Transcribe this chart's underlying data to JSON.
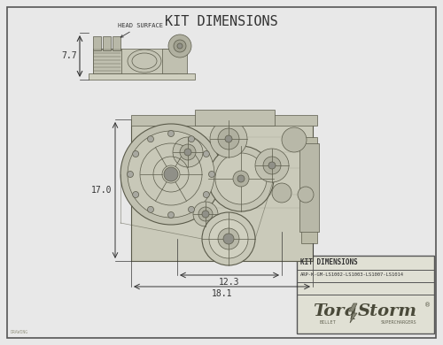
{
  "title": "KIT DIMENSIONS",
  "bg_color": "#e8e8e8",
  "border_color": "#555555",
  "drawing_color": "#5a5a4a",
  "dim_color": "#333333",
  "title_fontsize": 11,
  "label_fontsize": 6.5,
  "dim_fontsize": 7,
  "head_surface_label": "HEAD SURFACE",
  "dim_77": "7.7",
  "dim_170": "17.0",
  "dim_123": "12.3",
  "dim_181": "18.1",
  "kit_label": "KIT DIMENSIONS",
  "part_number": "ARP-K-GM-LS1002-LS1003-LS1007-LS1014",
  "logo_text_torq": "Torq",
  "logo_text_storm": "Storm",
  "logo_sub1": "BILLET",
  "logo_sub2": "SUPERCHARGERS"
}
